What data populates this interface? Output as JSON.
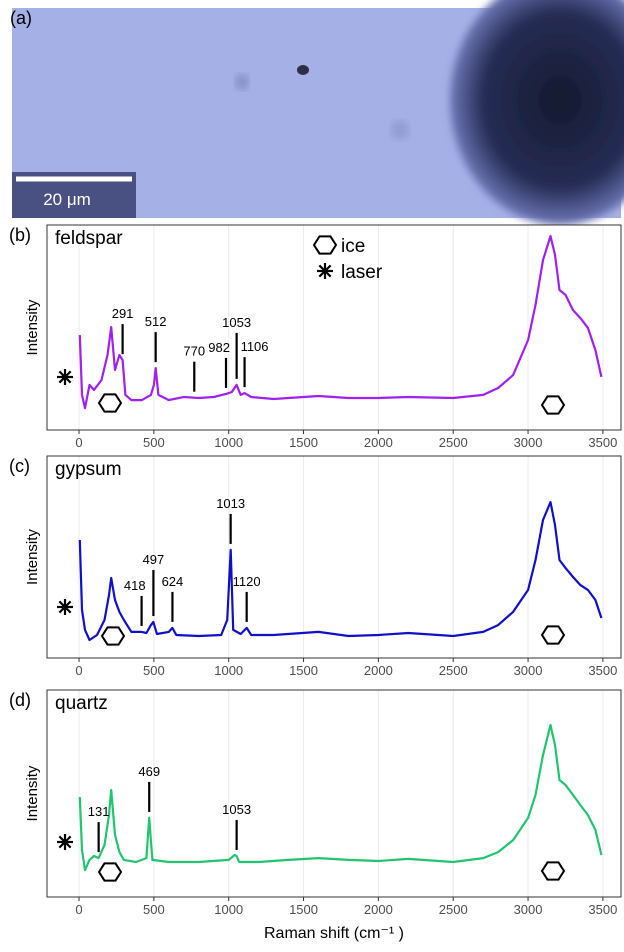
{
  "panel_a": {
    "label": "(a)",
    "scale_bar": "20 μm"
  },
  "chart_data": [
    {
      "type": "line",
      "label": "(b)",
      "title": "feldspar",
      "ylabel": "Intensity",
      "color": "#a020f0",
      "legend": [
        "ice",
        "laser"
      ],
      "xlim": [
        -214,
        3621
      ],
      "xticks": [
        0,
        500,
        1000,
        1500,
        2000,
        2500,
        3000,
        3500
      ],
      "ylim": [
        0,
        100
      ],
      "grid": true,
      "peaks": [
        291,
        512,
        770,
        982,
        1053,
        1106
      ],
      "x": [
        5,
        20,
        40,
        70,
        100,
        150,
        190,
        215,
        240,
        270,
        291,
        310,
        350,
        420,
        480,
        500,
        512,
        530,
        600,
        700,
        800,
        900,
        982,
        1020,
        1053,
        1080,
        1106,
        1150,
        1300,
        1600,
        1800,
        2000,
        2200,
        2500,
        2700,
        2800,
        2900,
        3000,
        3050,
        3100,
        3150,
        3180,
        3210,
        3250,
        3300,
        3350,
        3400,
        3450,
        3490
      ],
      "values": [
        46.3,
        17.1,
        10.7,
        22.0,
        19.5,
        24.4,
        36.6,
        50.2,
        29.3,
        36.6,
        34.1,
        17.1,
        14.6,
        14.6,
        17.1,
        22.0,
        30.2,
        17.1,
        14.6,
        16.1,
        15.6,
        16.1,
        17.6,
        18.5,
        22.0,
        17.1,
        18.0,
        16.1,
        15.1,
        16.6,
        15.6,
        15.6,
        16.1,
        15.6,
        17.1,
        20.5,
        26.8,
        43.9,
        61.0,
        82.9,
        94.6,
        85.4,
        68.3,
        65.9,
        58.5,
        54.6,
        49.8,
        39.0,
        25.9
      ]
    },
    {
      "type": "line",
      "label": "(c)",
      "title": "gypsum",
      "ylabel": "Intensity",
      "color": "#1010c8",
      "xlim": [
        -214,
        3621
      ],
      "xticks": [
        0,
        500,
        1000,
        1500,
        2000,
        2500,
        3000,
        3500
      ],
      "ylim": [
        0,
        100
      ],
      "grid": true,
      "peaks": [
        418,
        497,
        624,
        1013,
        1120
      ],
      "x": [
        5,
        20,
        40,
        70,
        120,
        170,
        200,
        215,
        240,
        270,
        300,
        350,
        418,
        450,
        480,
        497,
        520,
        600,
        624,
        650,
        800,
        950,
        990,
        1013,
        1030,
        1080,
        1120,
        1150,
        1300,
        1600,
        1800,
        2000,
        2200,
        2500,
        2700,
        2800,
        2900,
        3000,
        3050,
        3100,
        3150,
        3180,
        3210,
        3250,
        3300,
        3350,
        3400,
        3450,
        3490
      ],
      "values": [
        58.4,
        23.8,
        13.9,
        8.9,
        11.4,
        18.8,
        31.2,
        39.6,
        28.7,
        22.8,
        18.8,
        12.9,
        12.9,
        12.4,
        16.3,
        17.8,
        11.9,
        12.9,
        14.9,
        11.4,
        10.9,
        11.4,
        18.8,
        53.5,
        13.9,
        11.9,
        14.9,
        11.4,
        11.4,
        12.9,
        10.9,
        11.4,
        12.4,
        10.9,
        12.9,
        16.3,
        22.8,
        33.7,
        48.5,
        68.3,
        77.2,
        65.8,
        48.5,
        44.6,
        40.1,
        36.1,
        33.7,
        28.7,
        19.8
      ]
    },
    {
      "type": "line",
      "label": "(d)",
      "title": "quartz",
      "ylabel": "Intensity",
      "color": "#22c46e",
      "xlabel": "Raman shift (cm⁻¹ )",
      "xlim": [
        -214,
        3621
      ],
      "xticks": [
        0,
        500,
        1000,
        1500,
        2000,
        2500,
        3000,
        3500
      ],
      "ylim": [
        0,
        100
      ],
      "grid": true,
      "peaks": [
        131,
        469,
        1053
      ],
      "x": [
        5,
        20,
        40,
        70,
        100,
        131,
        170,
        200,
        215,
        240,
        270,
        300,
        380,
        450,
        469,
        490,
        600,
        800,
        1000,
        1040,
        1053,
        1070,
        1200,
        1400,
        1600,
        1800,
        2000,
        2200,
        2500,
        2700,
        2800,
        2900,
        3000,
        3050,
        3100,
        3150,
        3180,
        3210,
        3250,
        3300,
        3350,
        3400,
        3450,
        3490
      ],
      "values": [
        48.3,
        22.7,
        13.0,
        17.9,
        19.8,
        18.8,
        25.1,
        39.6,
        51.7,
        30.0,
        21.7,
        17.9,
        16.9,
        18.8,
        38.2,
        17.9,
        16.9,
        16.9,
        17.9,
        20.3,
        19.8,
        16.9,
        16.9,
        17.9,
        18.8,
        17.9,
        17.4,
        18.4,
        16.9,
        18.8,
        21.7,
        27.5,
        38.2,
        49.3,
        68.6,
        83.1,
        73.4,
        56.5,
        54.1,
        49.3,
        44.4,
        39.6,
        32.4,
        20.3
      ]
    }
  ]
}
